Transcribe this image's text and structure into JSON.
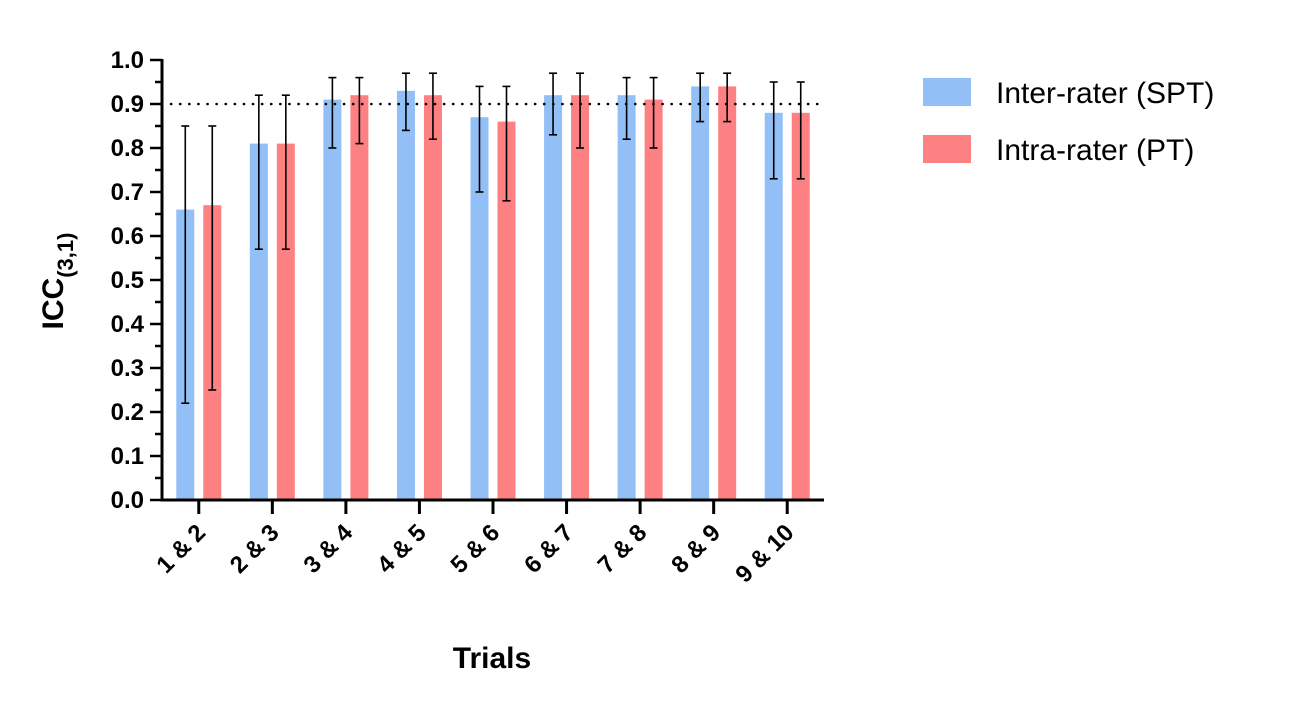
{
  "chart_data": {
    "type": "bar",
    "title": "",
    "xlabel": "Trials",
    "ylabel": "ICC",
    "ylabel_subscript": "(3,1)",
    "ylim": [
      0,
      1.0
    ],
    "y_ticks": [
      "0.0",
      "0.1",
      "0.2",
      "0.3",
      "0.4",
      "0.5",
      "0.6",
      "0.7",
      "0.8",
      "0.9",
      "1.0"
    ],
    "reference_line": 0.9,
    "categories": [
      "1 & 2",
      "2 & 3",
      "3 & 4",
      "4 & 5",
      "5 & 6",
      "6 & 7",
      "7 & 8",
      "8 & 9",
      "9 & 10"
    ],
    "series": [
      {
        "name": "Inter-rater (SPT)",
        "color": "#93BFF7",
        "values": [
          0.66,
          0.81,
          0.91,
          0.93,
          0.87,
          0.92,
          0.92,
          0.94,
          0.88
        ],
        "ci_lower": [
          0.22,
          0.57,
          0.8,
          0.84,
          0.7,
          0.83,
          0.82,
          0.86,
          0.73
        ],
        "ci_upper": [
          0.85,
          0.92,
          0.96,
          0.97,
          0.94,
          0.97,
          0.96,
          0.97,
          0.95
        ]
      },
      {
        "name": "Intra-rater (PT)",
        "color": "#FD8182",
        "values": [
          0.67,
          0.81,
          0.92,
          0.92,
          0.86,
          0.92,
          0.91,
          0.94,
          0.88
        ],
        "ci_lower": [
          0.25,
          0.57,
          0.81,
          0.82,
          0.68,
          0.8,
          0.8,
          0.86,
          0.73
        ],
        "ci_upper": [
          0.85,
          0.92,
          0.96,
          0.97,
          0.94,
          0.97,
          0.96,
          0.97,
          0.95
        ]
      }
    ],
    "legend_position": "top-right",
    "grid": false
  }
}
